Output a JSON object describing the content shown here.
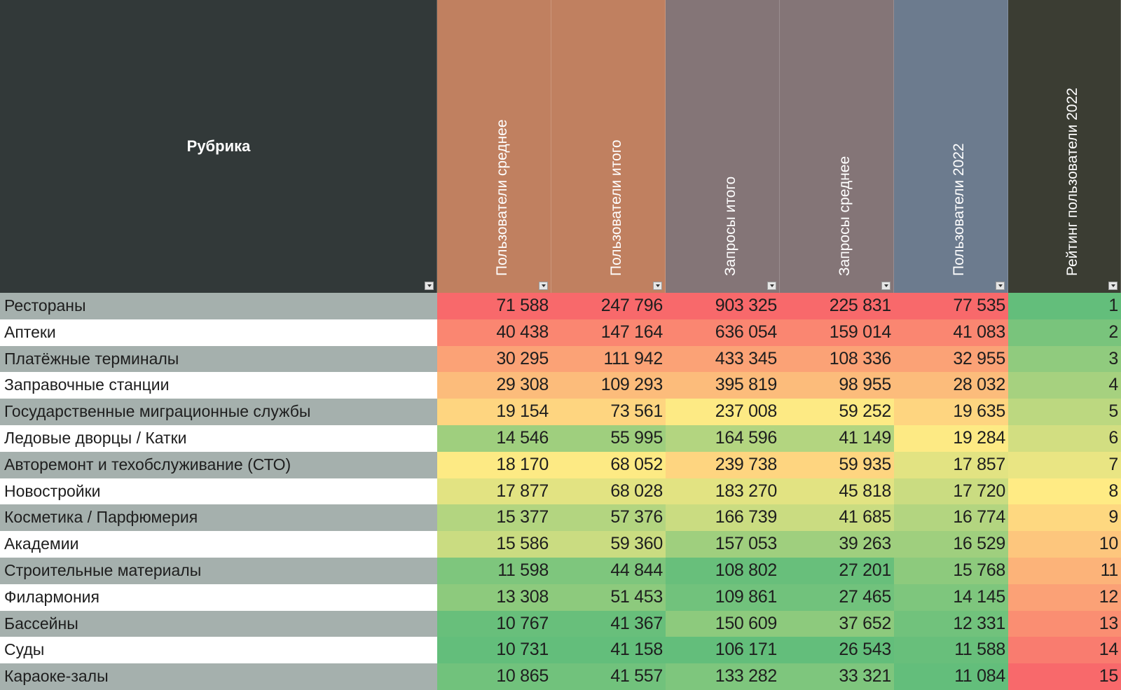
{
  "table": {
    "headers": {
      "rubric": "Рубрика",
      "users_avg": "Пользователи среднее",
      "users_total": "Пользователи итого",
      "queries_total": "Запросы итого",
      "queries_avg": "Запросы среднее",
      "users_2022": "Пользователи 2022",
      "rating_2022": "Рейтинг пользователи 2022"
    },
    "header_colors": {
      "rubric": "#323939",
      "users_avg": "#c08060",
      "users_total": "#c08060",
      "queries_total": "#847577",
      "queries_avg": "#847577",
      "users_2022": "#6c7b8e",
      "rating_2022": "#3b3d33"
    },
    "scale_colors": {
      "low": "#63be7b",
      "mid": "#ffeb84",
      "high": "#f8696b"
    },
    "rows": [
      {
        "name": "Рестораны",
        "users_avg": "71 588",
        "users_total": "247 796",
        "queries_total": "903 325",
        "queries_avg": "225 831",
        "users_2022": "77 535",
        "rating": "1"
      },
      {
        "name": "Аптеки",
        "users_avg": "40 438",
        "users_total": "147 164",
        "queries_total": "636 054",
        "queries_avg": "159 014",
        "users_2022": "41 083",
        "rating": "2"
      },
      {
        "name": "Платёжные терминалы",
        "users_avg": "30 295",
        "users_total": "111 942",
        "queries_total": "433 345",
        "queries_avg": "108 336",
        "users_2022": "32 955",
        "rating": "3"
      },
      {
        "name": "Заправочные станции",
        "users_avg": "29 308",
        "users_total": "109 293",
        "queries_total": "395 819",
        "queries_avg": "98 955",
        "users_2022": "28 032",
        "rating": "4"
      },
      {
        "name": "Государственные миграционные службы",
        "users_avg": "19 154",
        "users_total": "73 561",
        "queries_total": "237 008",
        "queries_avg": "59 252",
        "users_2022": "19 635",
        "rating": "5"
      },
      {
        "name": "Ледовые дворцы / Катки",
        "users_avg": "14 546",
        "users_total": "55 995",
        "queries_total": "164 596",
        "queries_avg": "41 149",
        "users_2022": "19 284",
        "rating": "6"
      },
      {
        "name": "Авторемонт и техобслуживание (СТО)",
        "users_avg": "18 170",
        "users_total": "68 052",
        "queries_total": "239 738",
        "queries_avg": "59 935",
        "users_2022": "17 857",
        "rating": "7"
      },
      {
        "name": "Новостройки",
        "users_avg": "17 877",
        "users_total": "68 028",
        "queries_total": "183 270",
        "queries_avg": "45 818",
        "users_2022": "17 720",
        "rating": "8"
      },
      {
        "name": "Косметика / Парфюмерия",
        "users_avg": "15 377",
        "users_total": "57 376",
        "queries_total": "166 739",
        "queries_avg": "41 685",
        "users_2022": "16 774",
        "rating": "9"
      },
      {
        "name": "Академии",
        "users_avg": "15 586",
        "users_total": "59 360",
        "queries_total": "157 053",
        "queries_avg": "39 263",
        "users_2022": "16 529",
        "rating": "10"
      },
      {
        "name": "Строительные материалы",
        "users_avg": "11 598",
        "users_total": "44 844",
        "queries_total": "108 802",
        "queries_avg": "27 201",
        "users_2022": "15 768",
        "rating": "11"
      },
      {
        "name": "Филармония",
        "users_avg": "13 308",
        "users_total": "51 453",
        "queries_total": "109 861",
        "queries_avg": "27 465",
        "users_2022": "14 145",
        "rating": "12"
      },
      {
        "name": "Бассейны",
        "users_avg": "10 767",
        "users_total": "41 367",
        "queries_total": "150 609",
        "queries_avg": "37 652",
        "users_2022": "12 331",
        "rating": "13"
      },
      {
        "name": "Суды",
        "users_avg": "10 731",
        "users_total": "41 158",
        "queries_total": "106 171",
        "queries_avg": "26 543",
        "users_2022": "11 588",
        "rating": "14"
      },
      {
        "name": "Караоке-залы",
        "users_avg": "10 865",
        "users_total": "41 557",
        "queries_total": "133 282",
        "queries_avg": "33 321",
        "users_2022": "11 084",
        "rating": "15"
      }
    ]
  }
}
